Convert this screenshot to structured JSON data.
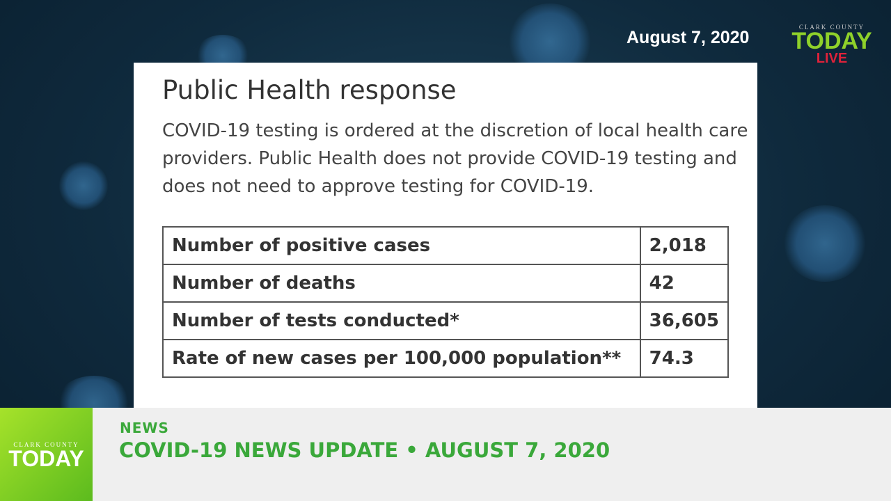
{
  "header": {
    "date": "August 7, 2020",
    "logo": {
      "top": "CLARK COUNTY",
      "main": "TODAY",
      "live": "LIVE"
    }
  },
  "card": {
    "title": "Public Health response",
    "text": "COVID-19 testing is ordered at the discretion of local health care providers. Public Health does not provide COVID-19 testing and does not need to approve testing for COVID-19.",
    "table": {
      "rows": [
        [
          "Number of positive cases",
          "2,018"
        ],
        [
          "Number of deaths",
          "42"
        ],
        [
          "Number of tests conducted*",
          "36,605"
        ],
        [
          "Rate of new cases per 100,000 population**",
          "74.3"
        ]
      ]
    }
  },
  "lower_third": {
    "logo": {
      "top": "CLARK COUNTY",
      "main": "TODAY"
    },
    "category": "NEWS",
    "headline": "COVID-19 NEWS UPDATE • AUGUST 7, 2020"
  }
}
